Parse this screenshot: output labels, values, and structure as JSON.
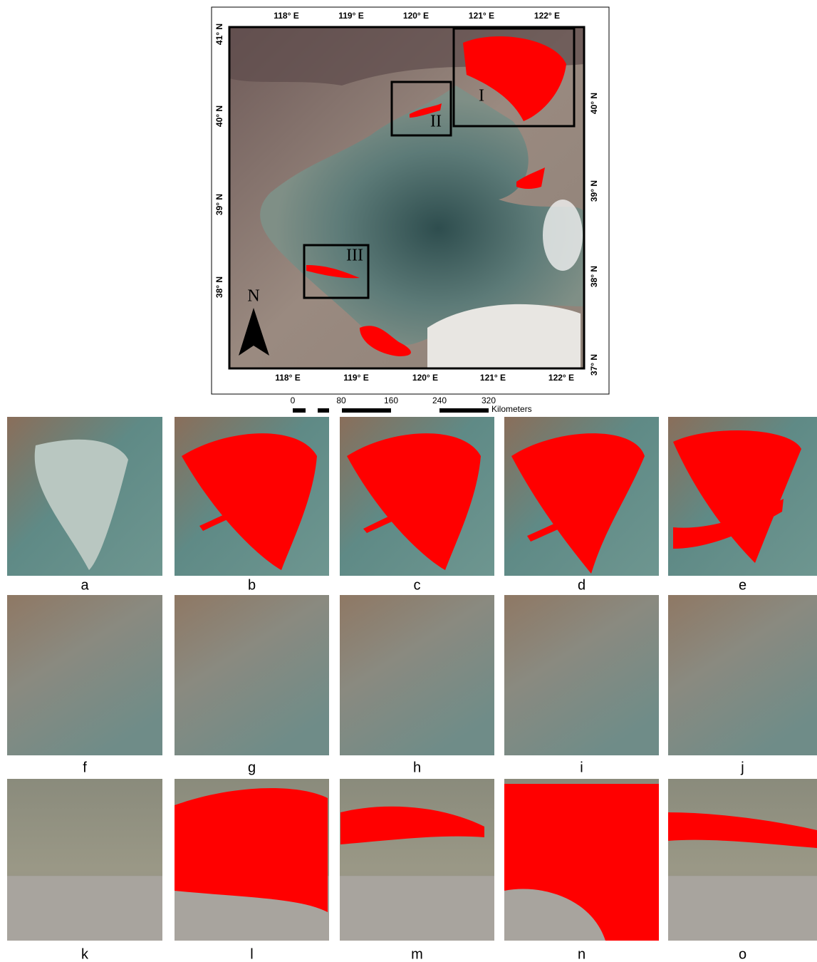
{
  "map": {
    "lon_top": [
      "118° E",
      "119° E",
      "120° E",
      "121° E",
      "122° E"
    ],
    "lon_bottom": [
      "118° E",
      "119° E",
      "120° E",
      "121° E",
      "122° E"
    ],
    "lat_left": [
      "41° N",
      "40° N",
      "39° N",
      "38° N"
    ],
    "lat_right": [
      "40° N",
      "39° N",
      "38° N",
      "37° N"
    ],
    "boxes": [
      "I",
      "II",
      "III"
    ],
    "north": "N"
  },
  "scale_bar": {
    "labels": [
      "0",
      "80",
      "160",
      "240",
      "320"
    ],
    "unit": "Kilometers"
  },
  "panels": [
    "a",
    "b",
    "c",
    "d",
    "e",
    "f",
    "g",
    "h",
    "i",
    "j",
    "k",
    "l",
    "m",
    "n",
    "o"
  ]
}
